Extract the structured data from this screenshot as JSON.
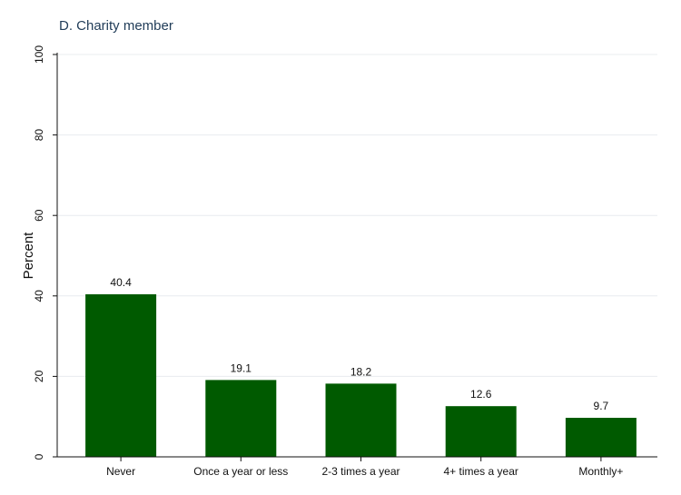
{
  "chart_data": {
    "type": "bar",
    "title": "D. Charity member",
    "xlabel": "",
    "ylabel": "Percent",
    "categories": [
      "Never",
      "Once a year or less",
      "2-3 times a year",
      "4+ times a year",
      "Monthly+"
    ],
    "values": [
      40.4,
      19.1,
      18.2,
      12.6,
      9.7
    ],
    "data_labels": [
      "40.4",
      "19.1",
      "18.2",
      "12.6",
      "9.7"
    ],
    "ylim": [
      0,
      100
    ],
    "yticks": [
      0,
      20,
      40,
      60,
      80,
      100
    ],
    "ytick_labels": [
      "0",
      "20",
      "40",
      "60",
      "80",
      "100"
    ],
    "grid": true,
    "legend": "none",
    "colors": {
      "bar": "#005a00",
      "grid": "#e8ecef",
      "axis": "#111111",
      "title": "#1f3b57"
    }
  }
}
